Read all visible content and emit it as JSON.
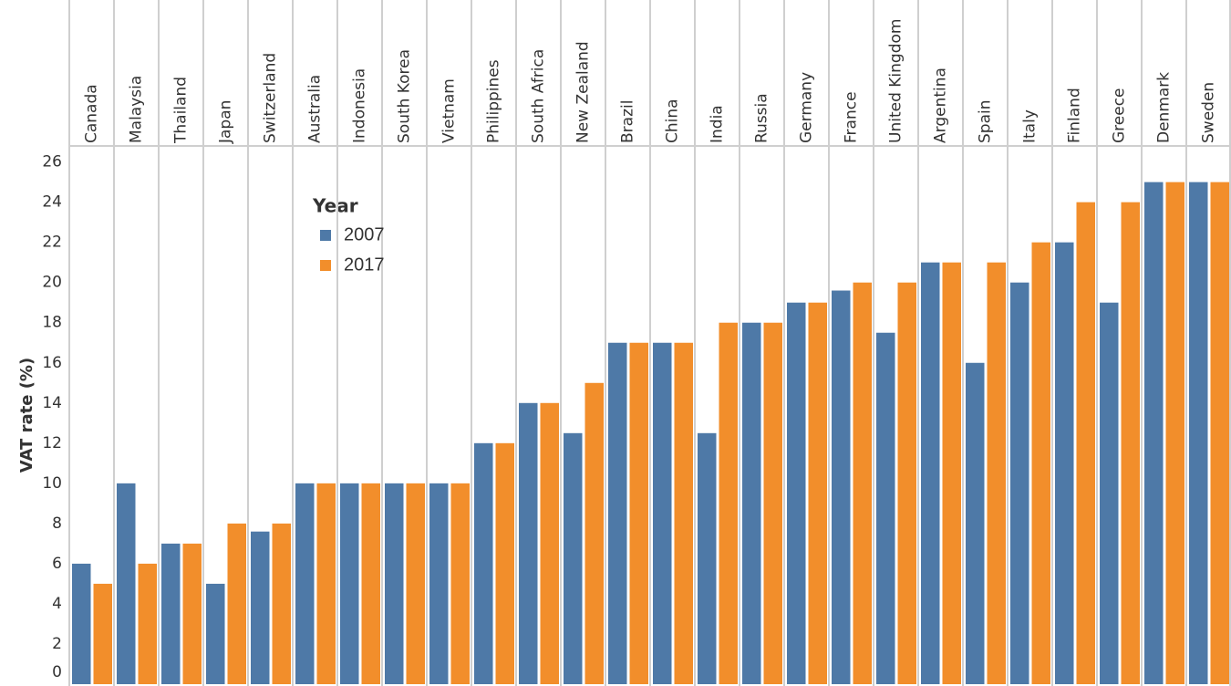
{
  "chart_data": {
    "type": "bar",
    "y_label": "VAT rate (%)",
    "legend_title": "Year",
    "categories": [
      "Canada",
      "Malaysia",
      "Thailand",
      "Japan",
      "Switzerland",
      "Australia",
      "Indonesia",
      "South Korea",
      "Vietnam",
      "Philippines",
      "South Africa",
      "New Zealand",
      "Brazil",
      "China",
      "India",
      "Russia",
      "Germany",
      "France",
      "United Kingdom",
      "Argentina",
      "Spain",
      "Italy",
      "Finland",
      "Greece",
      "Denmark",
      "Sweden"
    ],
    "series": [
      {
        "name": "2007",
        "color": "#4e79a7",
        "values": [
          6,
          10,
          7,
          5,
          7.6,
          10,
          10,
          10,
          10,
          12,
          14,
          12.5,
          17,
          17,
          12.5,
          18,
          19,
          19.6,
          17.5,
          21,
          16,
          20,
          22,
          19,
          25,
          25
        ]
      },
      {
        "name": "2017",
        "color": "#f28e2b",
        "values": [
          5,
          6,
          7,
          8,
          8,
          10,
          10,
          10,
          10,
          12,
          14,
          15,
          17,
          17,
          18,
          18,
          19,
          20,
          20,
          21,
          21,
          22,
          24,
          24,
          25,
          25
        ]
      }
    ],
    "ylim": [
      0,
      26.8
    ],
    "yticks": [
      0,
      2,
      4,
      6,
      8,
      10,
      12,
      14,
      16,
      18,
      20,
      22,
      24,
      26
    ],
    "grid": false
  }
}
